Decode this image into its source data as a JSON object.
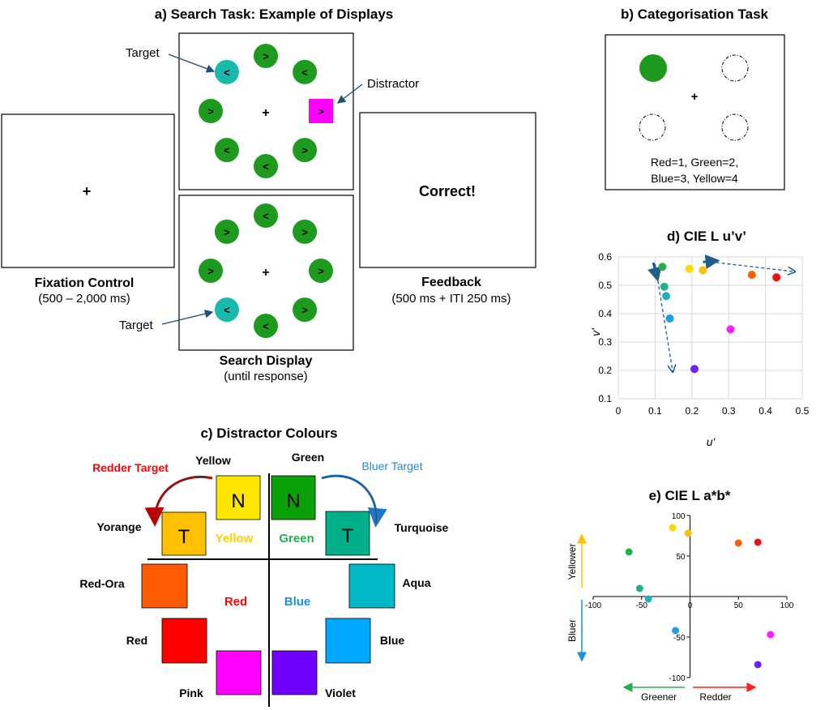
{
  "panel_a": {
    "title": "a) Search Task: Example of Displays",
    "fixation_symbol": "+",
    "target_label": "Target",
    "distractor_label": "Distractor",
    "fixation_caption": "Fixation Control",
    "fixation_timing": "(500 – 2,000 ms)",
    "search_caption": "Search Display",
    "search_timing": "(until response)",
    "feedback_text": "Correct!",
    "feedback_caption": "Feedback",
    "feedback_timing": "(500 ms + ITI 250 ms)",
    "display1_symbols": [
      ">",
      "<",
      ">",
      ">",
      "<",
      "<",
      ">",
      "<"
    ],
    "display2_symbols": [
      "<",
      ">",
      ">",
      ">",
      "<",
      "<",
      ">",
      ">"
    ],
    "colors": {
      "green": "#1e9b1e",
      "target": "#19b9ac",
      "distractor": "#ff00ff"
    }
  },
  "panel_b": {
    "title": "b) Categorisation Task",
    "fixation_symbol": "+",
    "caption_line1": "Red=1,  Green=2,",
    "caption_line2": "Blue=3,  Yellow=4",
    "colors": {
      "stimulus": "#1e9b1e"
    }
  },
  "panel_c": {
    "title": "c) Distractor Colours",
    "labels": {
      "yellow": "Yellow",
      "green": "Green",
      "redder_target": "Redder Target",
      "bluer_target": "Bluer Target",
      "yorange": "Yorange",
      "turquoise": "Turquoise",
      "red_ora": "Red-Ora",
      "aqua": "Aqua",
      "red": "Red",
      "blue": "Blue",
      "pink": "Pink",
      "violet": "Violet"
    },
    "square_letters": {
      "yellow": "N",
      "green": "N",
      "yorange": "T",
      "turquoise": "T"
    },
    "quadrant_labels": {
      "yellow": "Yellow",
      "green": "Green",
      "red": "Red",
      "blue": "Blue"
    },
    "colors": {
      "yellow": "#ffe600",
      "green": "#0aa00a",
      "yorange": "#ffc000",
      "turquoise": "#00b08a",
      "red_ora": "#ff5a00",
      "aqua": "#00b8c8",
      "red": "#ff0000",
      "blue": "#00a8ff",
      "pink": "#ff00ff",
      "violet": "#7000ff",
      "redder_text": "#ff0000",
      "bluer_text": "#1f8ed8",
      "yellow_text": "#ffd000",
      "green_text": "#20b050",
      "red_text": "#ff0000",
      "blue_text": "#1f8ed8"
    }
  },
  "chart_data": [
    {
      "type": "scatter",
      "title": "d) CIE  L u’v’",
      "xlabel": "u'",
      "ylabel": "v'",
      "xlim": [
        0,
        0.5
      ],
      "ylim": [
        0.1,
        0.6
      ],
      "xticks": [
        "0",
        "0.1",
        "0.2",
        "0.3",
        "0.4",
        "0.5"
      ],
      "yticks": [
        "0.1",
        "0.2",
        "0.3",
        "0.4",
        "0.5",
        "0.6"
      ],
      "grid": true,
      "points": [
        {
          "x": 0.12,
          "y": 0.565,
          "color": "#22b14c"
        },
        {
          "x": 0.125,
          "y": 0.495,
          "color": "#22b190"
        },
        {
          "x": 0.13,
          "y": 0.462,
          "color": "#20b0c0"
        },
        {
          "x": 0.14,
          "y": 0.383,
          "color": "#1fa0e0"
        },
        {
          "x": 0.193,
          "y": 0.558,
          "color": "#ffd800"
        },
        {
          "x": 0.23,
          "y": 0.553,
          "color": "#ffc000"
        },
        {
          "x": 0.363,
          "y": 0.537,
          "color": "#ff6000"
        },
        {
          "x": 0.43,
          "y": 0.528,
          "color": "#ee1111"
        },
        {
          "x": 0.305,
          "y": 0.345,
          "color": "#ff20ff"
        },
        {
          "x": 0.207,
          "y": 0.205,
          "color": "#7020ff"
        }
      ],
      "arrow_color": "#1f5f8b"
    },
    {
      "type": "scatter",
      "title": "e) CIE  L a*b*",
      "xlim": [
        -100,
        100
      ],
      "ylim": [
        -100,
        100
      ],
      "xticks": [
        "-100",
        "-50",
        "0",
        "50",
        "100"
      ],
      "yticks": [
        "100",
        "50",
        "-50",
        "-100"
      ],
      "grid": false,
      "axis_labels": {
        "yellower": "Yellower",
        "bluer": "Bluer",
        "greener": "Greener",
        "redder": "Redder"
      },
      "points": [
        {
          "x": -63,
          "y": 55,
          "color": "#22b14c"
        },
        {
          "x": -18,
          "y": 85,
          "color": "#ffd800"
        },
        {
          "x": -2,
          "y": 78,
          "color": "#ffc000"
        },
        {
          "x": 50,
          "y": 66,
          "color": "#ff6000"
        },
        {
          "x": 70,
          "y": 67,
          "color": "#ee1111"
        },
        {
          "x": -52,
          "y": 10,
          "color": "#22b190"
        },
        {
          "x": -43,
          "y": -3,
          "color": "#20b0c0"
        },
        {
          "x": -15,
          "y": -42,
          "color": "#1fa0e0"
        },
        {
          "x": 83,
          "y": -47,
          "color": "#ff20ff"
        },
        {
          "x": 70,
          "y": -84,
          "color": "#7020ff"
        }
      ],
      "colors": {
        "yellower": "#ffd000",
        "bluer": "#1f8ed8",
        "greener": "#20b050",
        "redder": "#ff2020"
      }
    }
  ]
}
